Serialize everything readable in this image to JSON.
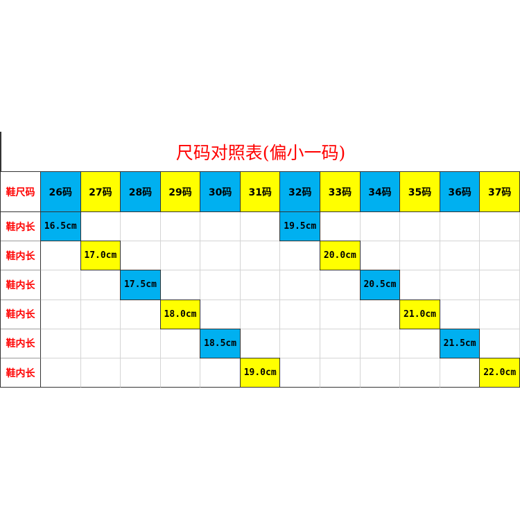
{
  "title": "尺码对照表(偏小一码)",
  "colors": {
    "blue": "#00B0F0",
    "yellow": "#FFFF00",
    "title": "#FF0000"
  },
  "header_label": "鞋尺码",
  "sizes": [
    "26码",
    "27码",
    "28码",
    "29码",
    "30码",
    "31码",
    "32码",
    "33码",
    "34码",
    "35码",
    "36码",
    "37码"
  ],
  "rows": [
    {
      "label": "鞋内长",
      "cells": [
        {
          "col": 0,
          "value": "16.5cm"
        },
        {
          "col": 6,
          "value": "19.5cm"
        }
      ]
    },
    {
      "label": "鞋内长",
      "cells": [
        {
          "col": 1,
          "value": "17.0cm"
        },
        {
          "col": 7,
          "value": "20.0cm"
        }
      ]
    },
    {
      "label": "鞋内长",
      "cells": [
        {
          "col": 2,
          "value": "17.5cm"
        },
        {
          "col": 8,
          "value": "20.5cm"
        }
      ]
    },
    {
      "label": "鞋内长",
      "cells": [
        {
          "col": 3,
          "value": "18.0cm"
        },
        {
          "col": 9,
          "value": "21.0cm"
        }
      ]
    },
    {
      "label": "鞋内长",
      "cells": [
        {
          "col": 4,
          "value": "18.5cm"
        },
        {
          "col": 10,
          "value": "21.5cm"
        }
      ]
    },
    {
      "label": "鞋内长",
      "cells": [
        {
          "col": 5,
          "value": "19.0cm"
        },
        {
          "col": 11,
          "value": "22.0cm"
        }
      ]
    }
  ]
}
